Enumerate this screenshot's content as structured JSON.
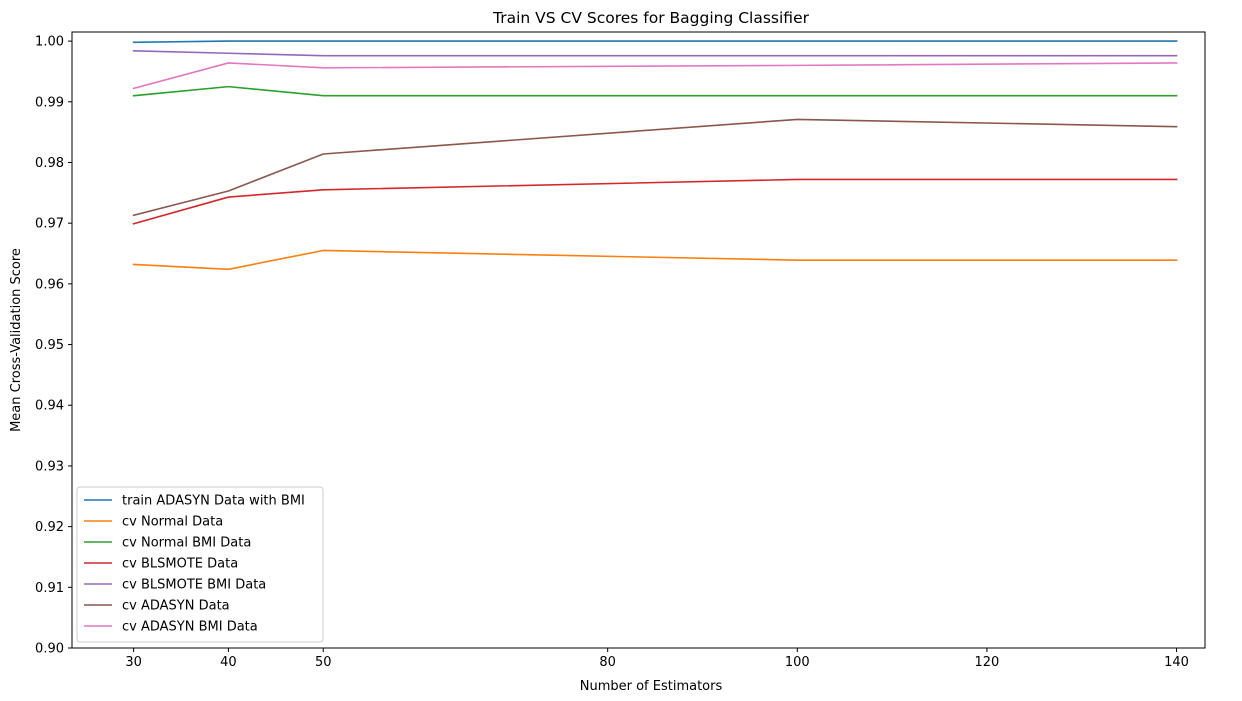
{
  "chart_data": {
    "type": "line",
    "title": "Train VS CV Scores for Bagging Classifier",
    "xlabel": "Number of Estimators",
    "ylabel": "Mean Cross-Validation Score",
    "x": [
      30,
      40,
      50,
      100,
      140
    ],
    "xticks": [
      30,
      40,
      50,
      80,
      100,
      120,
      140
    ],
    "xlim": [
      23.5,
      143
    ],
    "ylim": [
      0.9,
      1.0015
    ],
    "yticks": [
      "0.90",
      "0.91",
      "0.92",
      "0.93",
      "0.94",
      "0.95",
      "0.96",
      "0.97",
      "0.98",
      "0.99",
      "1.00"
    ],
    "grid": false,
    "legend_position": "lower-left",
    "series": [
      {
        "name": "train ADASYN Data with BMI",
        "color": "#1f77b4",
        "values": [
          0.9998,
          1.0,
          1.0,
          1.0,
          1.0
        ]
      },
      {
        "name": "cv Normal Data",
        "color": "#ff7f0e",
        "values": [
          0.9632,
          0.9624,
          0.9655,
          0.9639,
          0.9639
        ]
      },
      {
        "name": "cv Normal BMI Data",
        "color": "#2ca02c",
        "values": [
          0.991,
          0.9925,
          0.991,
          0.991,
          0.991
        ]
      },
      {
        "name": "cv BLSMOTE Data",
        "color": "#d62728",
        "values": [
          0.9699,
          0.9743,
          0.9755,
          0.9772,
          0.9772
        ]
      },
      {
        "name": "cv BLSMOTE BMI Data",
        "color": "#9467bd",
        "values": [
          0.9984,
          0.998,
          0.9976,
          0.9976,
          0.9976
        ]
      },
      {
        "name": "cv ADASYN Data",
        "color": "#8c564b",
        "values": [
          0.9713,
          0.9753,
          0.9814,
          0.9871,
          0.9859
        ]
      },
      {
        "name": "cv ADASYN BMI Data",
        "color": "#e377c2",
        "values": [
          0.9922,
          0.9964,
          0.9956,
          0.996,
          0.9964
        ]
      }
    ]
  }
}
